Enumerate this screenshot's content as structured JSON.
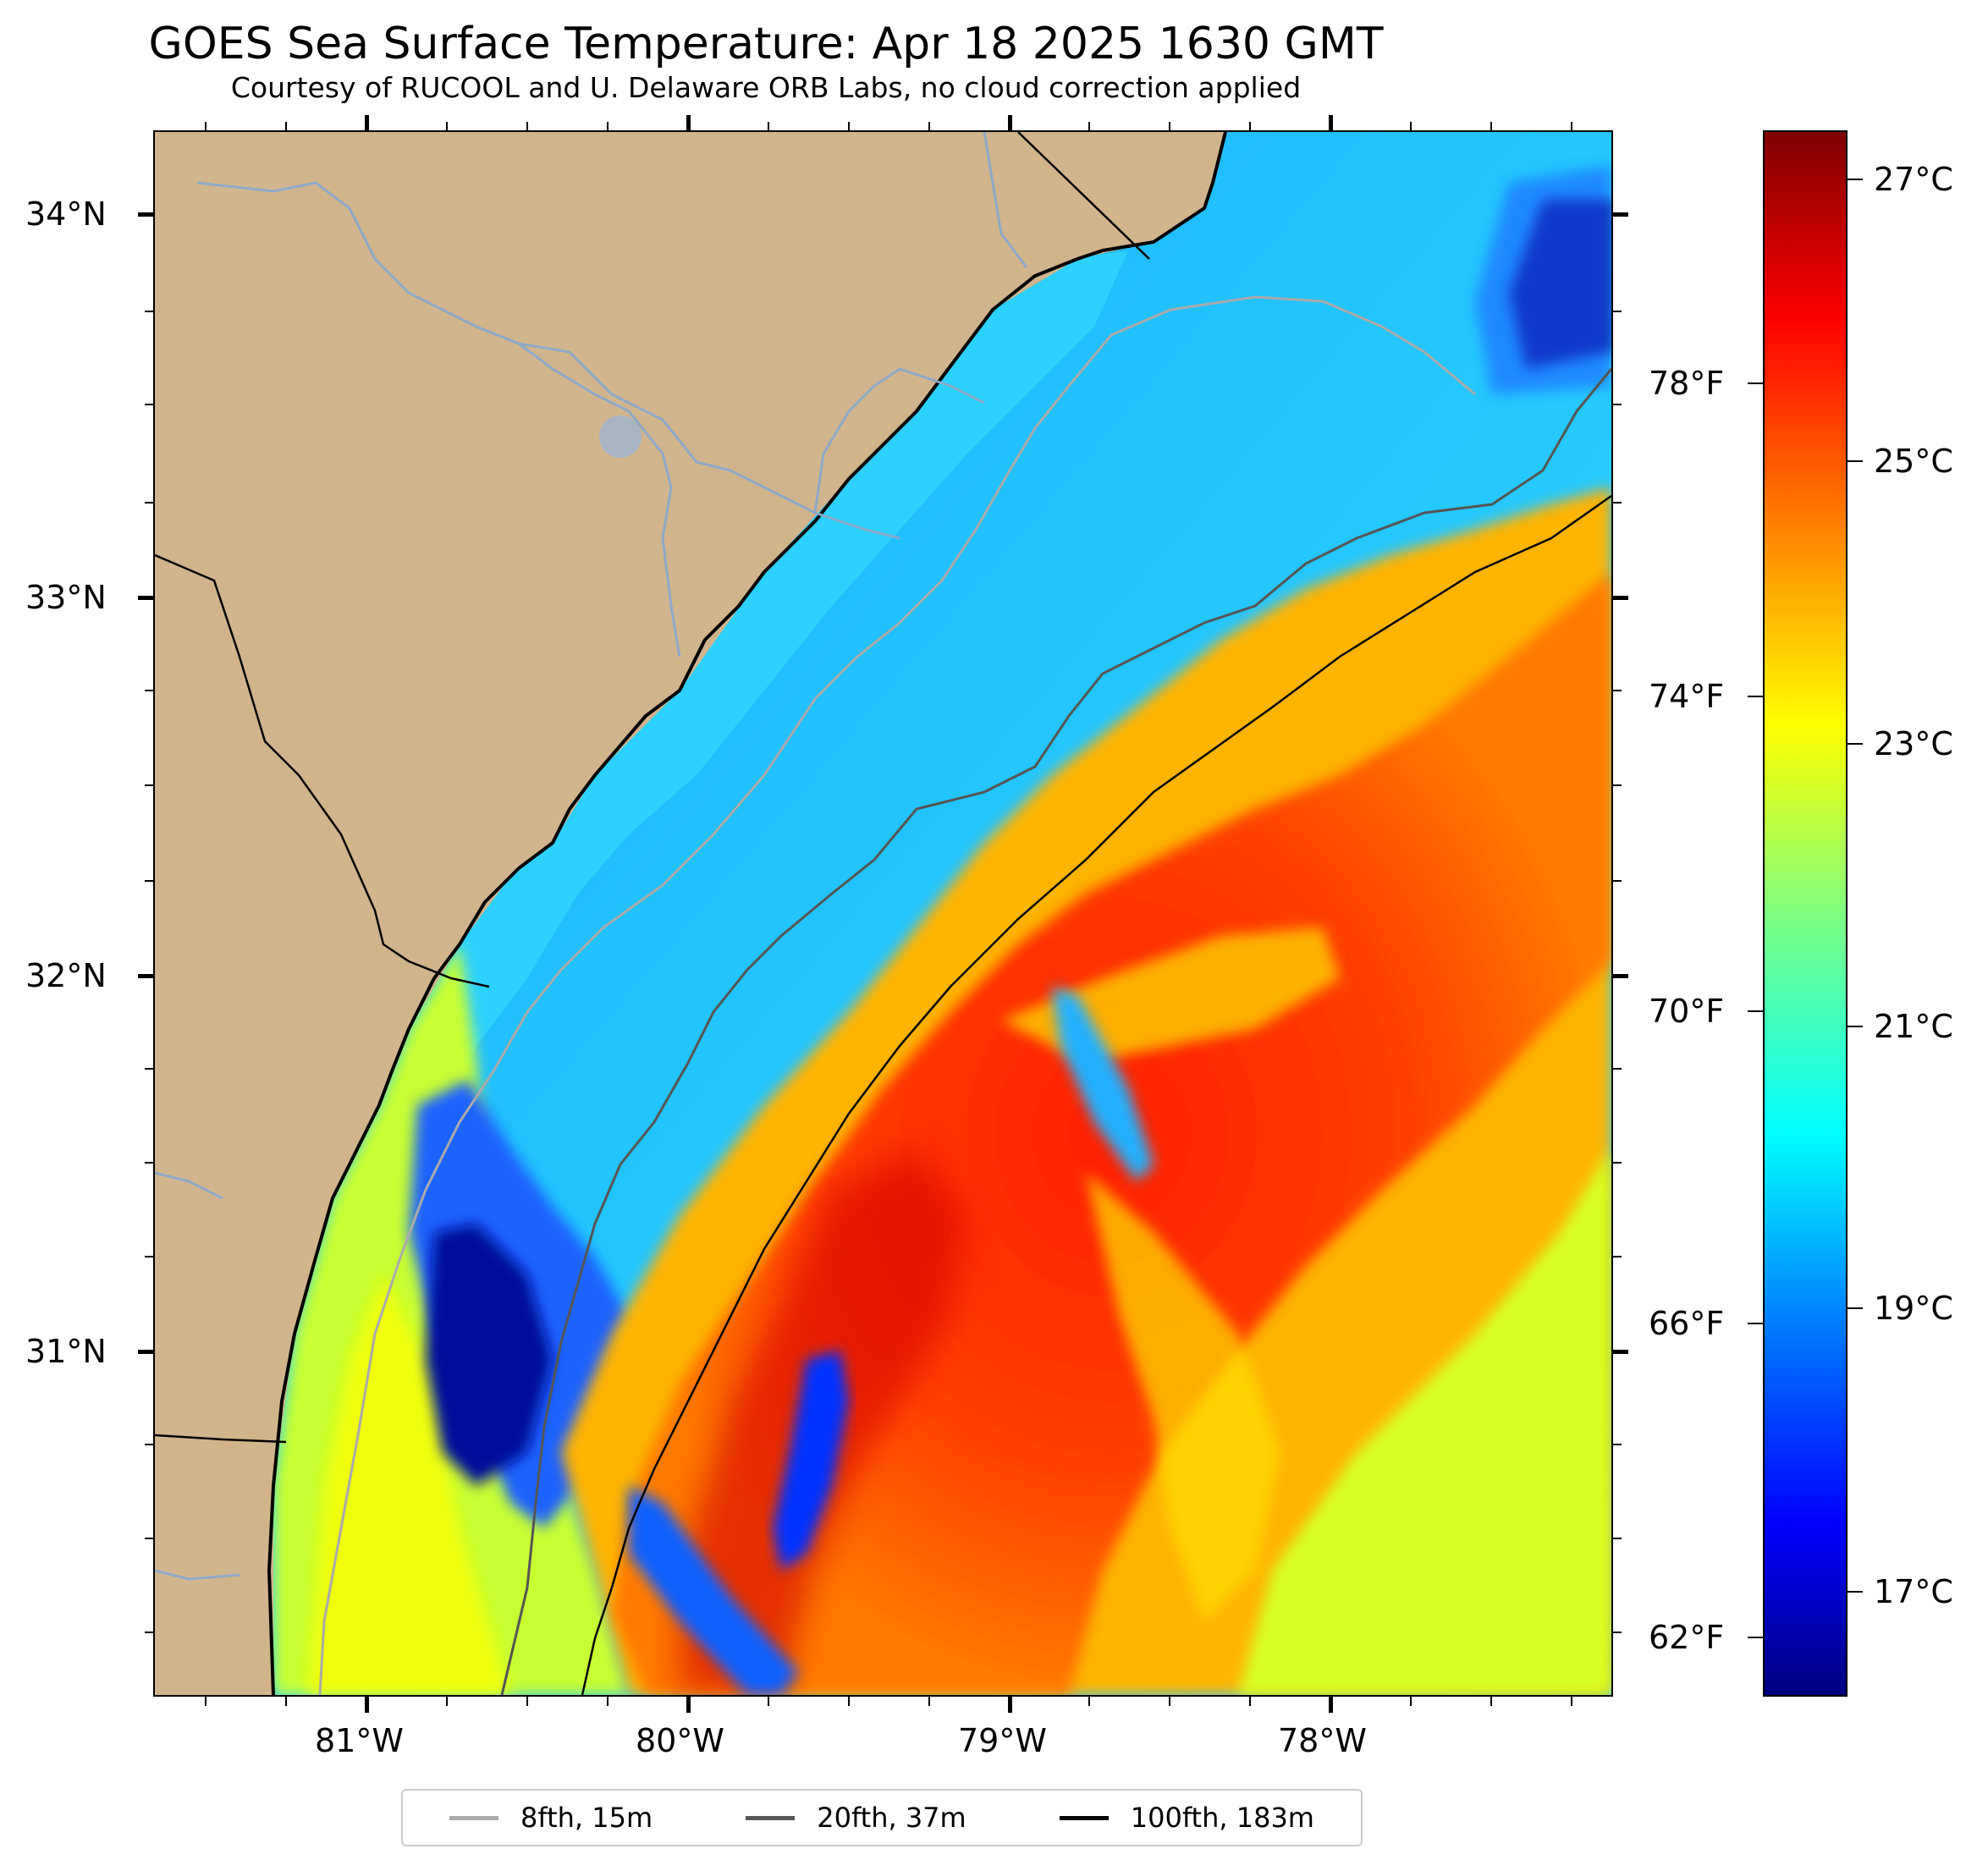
{
  "header": {
    "title": "GOES Sea Surface Temperature: Apr 18 2025 1630 GMT",
    "subtitle": "Courtesy of RUCOOL and U. Delaware ORB Labs, no cloud correction applied"
  },
  "map": {
    "lat_labels": [
      "34°N",
      "33°N",
      "32°N",
      "31°N"
    ],
    "lon_labels": [
      "81°W",
      "80°W",
      "79°W",
      "78°W"
    ],
    "land_color": "#d2b48c",
    "coastline_color": "#000000",
    "river_color": "#8ea9c8"
  },
  "colorbar": {
    "celsius_labels": [
      "27°C",
      "25°C",
      "23°C",
      "21°C",
      "19°C",
      "17°C"
    ],
    "fahrenheit_labels": [
      "78°F",
      "74°F",
      "70°F",
      "66°F",
      "62°F"
    ],
    "colormap": "jet"
  },
  "legend": {
    "items": [
      {
        "label": "8fth, 15m",
        "color": "#aaaaaa"
      },
      {
        "label": "20fth, 37m",
        "color": "#555555"
      },
      {
        "label": "100fth, 183m",
        "color": "#000000"
      }
    ]
  }
}
